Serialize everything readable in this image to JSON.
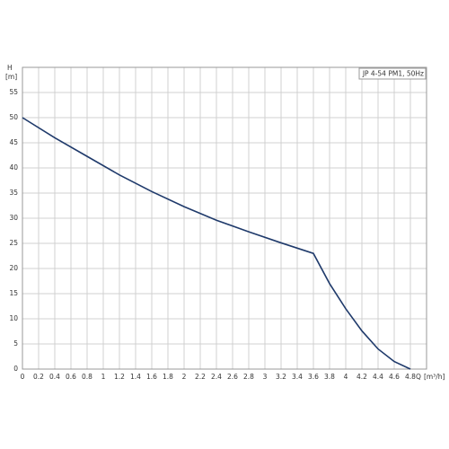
{
  "chart_data": {
    "type": "line",
    "y_label": "H",
    "y_unit": "[m]",
    "x_label": "Q",
    "x_unit": "[m³/h]",
    "x": [
      0,
      0.4,
      0.8,
      1.2,
      1.6,
      2.0,
      2.4,
      2.8,
      3.2,
      3.6,
      3.8,
      4.0,
      4.2,
      4.4,
      4.6,
      4.8
    ],
    "series": [
      {
        "name": "JP 4-54 PM1, 50Hz",
        "color": "#1f3a6b",
        "values": [
          50,
          46,
          42.3,
          38.6,
          35.3,
          32.3,
          29.6,
          27.3,
          25.1,
          23,
          17,
          12,
          7.6,
          4,
          1.5,
          0
        ]
      }
    ],
    "xlim": [
      0,
      5.0
    ],
    "ylim": [
      0,
      60
    ],
    "xticks": [
      0,
      0.2,
      0.4,
      0.6,
      0.8,
      1.0,
      1.2,
      1.4,
      1.6,
      1.8,
      2.0,
      2.2,
      2.4,
      2.6,
      2.8,
      3.0,
      3.2,
      3.4,
      3.6,
      3.8,
      4.0,
      4.2,
      4.4,
      4.6,
      4.8
    ],
    "yticks": [
      0,
      5,
      10,
      15,
      20,
      25,
      30,
      35,
      40,
      45,
      50,
      55
    ],
    "grid": true,
    "legend": "top-right"
  }
}
